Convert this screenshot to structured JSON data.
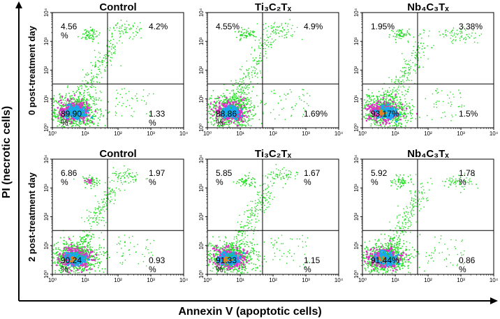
{
  "figure": {
    "y_axis_title": "PI (necrotic cells)",
    "x_axis_title": "Annexin V (apoptotic cells)",
    "row_labels": [
      "0 post-treatment day",
      "2 post-treatment day"
    ],
    "colors": {
      "green": "#22dd22",
      "magenta": "#e030c8",
      "blue": "#18a8f0",
      "orange": "#e8801c",
      "axis": "#000000"
    }
  },
  "chart_data": [
    {
      "type": "scatter",
      "title": "Control",
      "row": 0,
      "col": 0,
      "xscale": "log",
      "yscale": "log",
      "xlim": [
        1,
        10000
      ],
      "ylim": [
        1,
        10000
      ],
      "xticks": [
        "10⁰",
        "10¹",
        "10²",
        "10³",
        "10⁴"
      ],
      "yticks": [
        "10⁰",
        "10¹",
        "10²",
        "10³",
        "10⁴"
      ],
      "quadrants": {
        "upper_left": [
          "4.56",
          "%"
        ],
        "upper_right": [
          "4.2%"
        ],
        "lower_left": [
          "89.90",
          "%"
        ],
        "lower_right": [
          "1.33",
          "%"
        ]
      },
      "values_percent": {
        "upper_left": 4.56,
        "upper_right": 4.2,
        "lower_left": 89.9,
        "lower_right": 1.33
      }
    },
    {
      "type": "scatter",
      "title": "Ti₃C₂Tₓ",
      "row": 0,
      "col": 1,
      "xscale": "log",
      "yscale": "log",
      "xlim": [
        1,
        10000
      ],
      "ylim": [
        1,
        10000
      ],
      "xticks": [
        "10⁰",
        "10¹",
        "10²",
        "10³",
        "10⁴"
      ],
      "yticks": [
        "10⁰",
        "10¹",
        "10²",
        "10³",
        "10⁴"
      ],
      "quadrants": {
        "upper_left": [
          "4.55%"
        ],
        "upper_right": [
          "4.9%"
        ],
        "lower_left": [
          "88.86",
          "%"
        ],
        "lower_right": [
          "1.69%"
        ]
      },
      "values_percent": {
        "upper_left": 4.55,
        "upper_right": 4.9,
        "lower_left": 88.86,
        "lower_right": 1.69
      }
    },
    {
      "type": "scatter",
      "title": "Nb₄C₃Tₓ",
      "row": 0,
      "col": 2,
      "xscale": "log",
      "yscale": "log",
      "xlim": [
        1,
        10000
      ],
      "ylim": [
        1,
        10000
      ],
      "xticks": [
        "10⁰",
        "10¹",
        "10²",
        "10³",
        "10⁴"
      ],
      "yticks": [
        "10⁰",
        "10¹",
        "10²",
        "10³",
        "10⁴"
      ],
      "quadrants": {
        "upper_left": [
          "1.95%"
        ],
        "upper_right": [
          "3.38%"
        ],
        "lower_left": [
          "93.17%"
        ],
        "lower_right": [
          "1.5%"
        ]
      },
      "values_percent": {
        "upper_left": 1.95,
        "upper_right": 3.38,
        "lower_left": 93.17,
        "lower_right": 1.5
      }
    },
    {
      "type": "scatter",
      "title": "Control",
      "row": 1,
      "col": 0,
      "xscale": "log",
      "yscale": "log",
      "xlim": [
        1,
        10000
      ],
      "ylim": [
        1,
        10000
      ],
      "xticks": [
        "10⁰",
        "10¹",
        "10²",
        "10³",
        "10⁴"
      ],
      "yticks": [
        "10⁰",
        "10¹",
        "10²",
        "10³",
        "10⁴"
      ],
      "quadrants": {
        "upper_left": [
          "6.86",
          "%"
        ],
        "upper_right": [
          "1.97",
          "%"
        ],
        "lower_left": [
          "90.24",
          "%"
        ],
        "lower_right": [
          "0.93",
          "%"
        ]
      },
      "values_percent": {
        "upper_left": 6.86,
        "upper_right": 1.97,
        "lower_left": 90.24,
        "lower_right": 0.93
      }
    },
    {
      "type": "scatter",
      "title": "Ti₃C₂Tₓ",
      "row": 1,
      "col": 1,
      "xscale": "log",
      "yscale": "log",
      "xlim": [
        1,
        10000
      ],
      "ylim": [
        1,
        10000
      ],
      "xticks": [
        "10⁰",
        "10¹",
        "10²",
        "10³",
        "10⁴"
      ],
      "yticks": [
        "10⁰",
        "10¹",
        "10²",
        "10³",
        "10⁴"
      ],
      "quadrants": {
        "upper_left": [
          "5.85",
          "%"
        ],
        "upper_right": [
          "1.67",
          "%"
        ],
        "lower_left": [
          "91.33",
          "%"
        ],
        "lower_right": [
          "1.15",
          "%"
        ]
      },
      "values_percent": {
        "upper_left": 5.85,
        "upper_right": 1.67,
        "lower_left": 91.33,
        "lower_right": 1.15
      }
    },
    {
      "type": "scatter",
      "title": "Nb₄C₃Tₓ",
      "row": 1,
      "col": 2,
      "xscale": "log",
      "yscale": "log",
      "xlim": [
        1,
        10000
      ],
      "ylim": [
        1,
        10000
      ],
      "xticks": [
        "10⁰",
        "10¹",
        "10²",
        "10³",
        "10⁴"
      ],
      "yticks": [
        "10⁰",
        "10¹",
        "10²",
        "10³",
        "10⁴"
      ],
      "quadrants": {
        "upper_left": [
          "5.92",
          "%"
        ],
        "upper_right": [
          "1.78",
          "%"
        ],
        "lower_left": [
          "91.44%"
        ],
        "lower_right": [
          "0.86",
          "%"
        ]
      },
      "values_percent": {
        "upper_left": 5.92,
        "upper_right": 1.78,
        "lower_left": 91.44,
        "lower_right": 0.86
      }
    }
  ]
}
